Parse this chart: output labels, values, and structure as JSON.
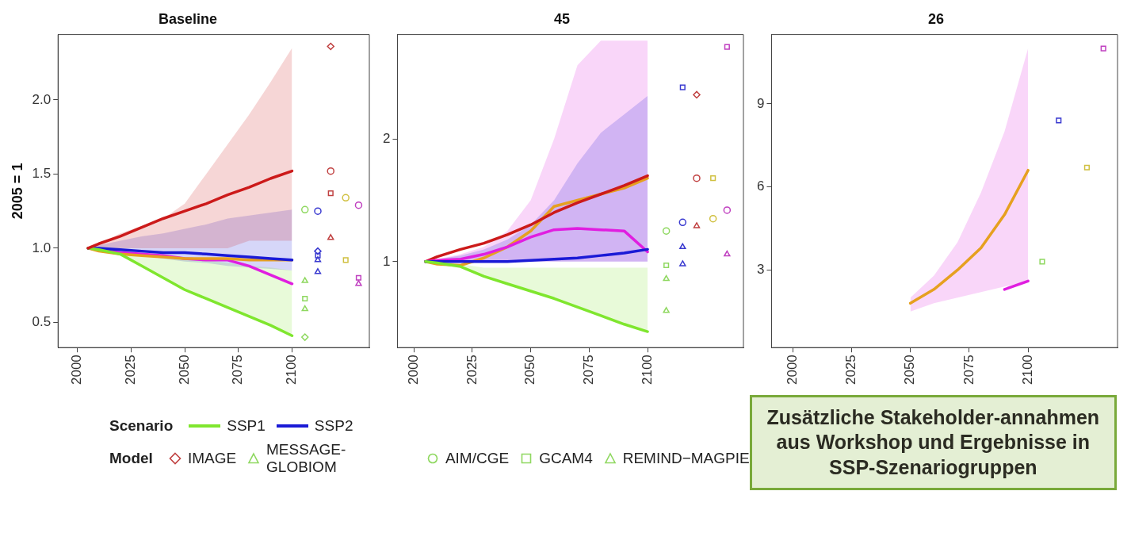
{
  "chart_data": [
    {
      "type": "line",
      "title": "Baseline",
      "ylabel": "2005 = 1",
      "legend": "bottom",
      "legend_title": "Scenario",
      "x": [
        2005,
        2010,
        2020,
        2030,
        2040,
        2050,
        2060,
        2070,
        2080,
        2090,
        2100
      ],
      "xlim": [
        1991,
        2136
      ],
      "xticks": [
        2000,
        2025,
        2050,
        2075,
        2100
      ],
      "ylim": [
        0.33,
        2.44
      ],
      "yticks": [
        0.5,
        {
          "value": 1,
          "label": "1.0"
        },
        1.5,
        {
          "value": 2,
          "label": "2.0"
        }
      ],
      "series": [
        {
          "type": "line",
          "color": "#cc1a1a",
          "values": [
            1,
            1.03,
            1.08,
            1.14,
            1.2,
            1.25,
            1.3,
            1.36,
            1.41,
            1.47,
            1.52
          ],
          "lower": [
            1,
            1,
            1,
            1,
            1,
            1,
            1,
            1,
            1.05,
            1.05,
            1.05
          ],
          "upper": [
            1,
            1.03,
            1.1,
            1.15,
            1.2,
            1.3,
            1.5,
            1.7,
            1.9,
            2.12,
            2.35
          ]
        },
        {
          "type": "line",
          "name": "SSP1",
          "color": "#7fe62e",
          "values": [
            1,
            0.99,
            0.96,
            0.88,
            0.8,
            0.72,
            0.66,
            0.6,
            0.54,
            0.48,
            0.41
          ],
          "lower": [
            1,
            0.99,
            0.96,
            0.88,
            0.8,
            0.72,
            0.66,
            0.6,
            0.54,
            0.48,
            0.41
          ],
          "upper": [
            1,
            1,
            0.98,
            0.96,
            0.95,
            0.93,
            0.92,
            0.9,
            0.88,
            0.87,
            0.85
          ]
        },
        {
          "type": "line",
          "name": "SSP2",
          "color": "#1a1ad6",
          "values": [
            1,
            1,
            0.99,
            0.98,
            0.97,
            0.97,
            0.96,
            0.95,
            0.94,
            0.93,
            0.92
          ],
          "lower": [
            1,
            0.99,
            0.97,
            0.95,
            0.93,
            0.91,
            0.9,
            0.88,
            0.87,
            0.86,
            0.85
          ],
          "upper": [
            1,
            1.02,
            1.05,
            1.08,
            1.1,
            1.13,
            1.16,
            1.2,
            1.22,
            1.24,
            1.26
          ]
        },
        {
          "type": "line",
          "color": "#e6a020",
          "values": [
            1,
            0.98,
            0.96,
            0.95,
            0.94,
            0.93,
            0.93,
            0.93,
            0.92,
            0.92,
            0.92
          ]
        },
        {
          "type": "line",
          "color": "#e01ee0",
          "values": [
            1,
            0.99,
            0.97,
            0.96,
            0.95,
            0.93,
            0.92,
            0.92,
            0.88,
            0.82,
            0.76
          ]
        },
        {
          "type": "scatter",
          "marker": "diamond",
          "x": [
            2106,
            2112,
            2118
          ],
          "values": [
            0.4,
            0.98,
            2.36
          ],
          "colors": [
            "#8fd860",
            "#3a3ad0",
            "#c04040"
          ]
        },
        {
          "type": "scatter",
          "marker": "triangle",
          "x": [
            2106,
            2112,
            2118
          ],
          "values": [
            0.78,
            0.92,
            1.07
          ],
          "colors": [
            "#8fd860",
            "#3a3ad0",
            "#c04040"
          ]
        },
        {
          "type": "scatter",
          "marker": "circle",
          "x": [
            2106,
            2112,
            2118,
            2125,
            2131
          ],
          "values": [
            1.26,
            1.25,
            1.52,
            1.34,
            1.29
          ],
          "colors": [
            "#8fd860",
            "#3a3ad0",
            "#c04040",
            "#d0c040",
            "#c040c0"
          ]
        },
        {
          "type": "scatter",
          "marker": "square",
          "x": [
            2106,
            2112,
            2118,
            2125,
            2131
          ],
          "values": [
            0.66,
            0.95,
            1.37,
            0.92,
            0.8
          ],
          "colors": [
            "#8fd860",
            "#3a3ad0",
            "#c04040",
            "#d0c040",
            "#c040c0"
          ]
        },
        {
          "type": "scatter",
          "marker": "triangle",
          "x": [
            2106,
            2112,
            2131
          ],
          "values": [
            0.59,
            0.84,
            0.76
          ],
          "colors": [
            "#8fd860",
            "#3a3ad0",
            "#c040c0"
          ]
        }
      ]
    },
    {
      "type": "line",
      "title": "45",
      "legend": "bottom",
      "legend_title": "Model",
      "x": [
        2005,
        2010,
        2020,
        2030,
        2040,
        2050,
        2060,
        2070,
        2080,
        2090,
        2100
      ],
      "xlim": [
        1993,
        2141
      ],
      "xticks": [
        2000,
        2025,
        2050,
        2075,
        2100
      ],
      "ylim": [
        0.3,
        2.85
      ],
      "yticks": [
        1,
        2
      ],
      "series": [
        {
          "type": "line",
          "color": "#7fe62e",
          "values": [
            1,
            0.99,
            0.96,
            0.88,
            0.82,
            0.76,
            0.7,
            0.63,
            0.56,
            0.49,
            0.43
          ],
          "lower": [
            1,
            0.99,
            0.96,
            0.88,
            0.82,
            0.76,
            0.7,
            0.63,
            0.56,
            0.49,
            0.43
          ],
          "upper": [
            1,
            1,
            0.98,
            0.95,
            0.95,
            0.95,
            0.95,
            0.95,
            0.95,
            0.95,
            0.95
          ]
        },
        {
          "type": "line",
          "color": "#1a1ad6",
          "values": [
            1,
            1,
            1,
            1,
            1,
            1.01,
            1.02,
            1.03,
            1.05,
            1.07,
            1.1
          ],
          "lower": [
            1,
            1,
            1,
            1,
            1,
            1,
            1,
            1,
            1,
            1,
            1
          ],
          "upper": [
            1,
            1.02,
            1.05,
            1.1,
            1.18,
            1.3,
            1.5,
            1.8,
            2.05,
            2.2,
            2.35
          ]
        },
        {
          "type": "line",
          "color": "#e01ee0",
          "values": [
            1,
            1.01,
            1.02,
            1.06,
            1.12,
            1.2,
            1.26,
            1.27,
            1.26,
            1.25,
            1.08
          ],
          "lower": [
            1,
            1,
            1,
            1,
            1,
            1,
            1,
            1,
            1,
            1,
            1
          ],
          "upper": [
            1,
            1.02,
            1.06,
            1.12,
            1.25,
            1.5,
            2,
            2.6,
            2.8,
            2.8,
            2.8
          ]
        },
        {
          "type": "line",
          "color": "#cc1a1a",
          "values": [
            1,
            1.04,
            1.1,
            1.15,
            1.22,
            1.3,
            1.4,
            1.48,
            1.55,
            1.62,
            1.7
          ]
        },
        {
          "type": "line",
          "color": "#e6a020",
          "values": [
            1,
            0.98,
            0.97,
            1.03,
            1.12,
            1.25,
            1.45,
            1.5,
            1.55,
            1.6,
            1.68
          ]
        },
        {
          "type": "scatter",
          "name": "IMAGE",
          "marker": "diamond",
          "x": [
            2121
          ],
          "values": [
            2.36
          ],
          "colors": [
            "#c04040"
          ]
        },
        {
          "type": "scatter",
          "name": "MESSAGE-GLOBIOM",
          "marker": "triangle",
          "x": [
            2108,
            2115,
            2121
          ],
          "values": [
            0.86,
            1.12,
            1.29
          ],
          "colors": [
            "#8fd860",
            "#3a3ad0",
            "#c04040"
          ]
        },
        {
          "type": "scatter",
          "name": "AIM/CGE",
          "marker": "circle",
          "x": [
            2108,
            2115,
            2121,
            2128,
            2134
          ],
          "values": [
            1.25,
            1.32,
            1.68,
            1.35,
            1.42
          ],
          "colors": [
            "#8fd860",
            "#3a3ad0",
            "#c04040",
            "#d0c040",
            "#c040c0"
          ]
        },
        {
          "type": "scatter",
          "name": "GCAM4",
          "marker": "square",
          "x": [
            2108,
            2115,
            2128,
            2134
          ],
          "values": [
            0.97,
            2.42,
            1.68,
            2.75
          ],
          "colors": [
            "#8fd860",
            "#3a3ad0",
            "#d0c040",
            "#c040c0"
          ]
        },
        {
          "type": "scatter",
          "name": "REMIND−MAGPIE",
          "marker": "triangle",
          "x": [
            2108,
            2115,
            2134
          ],
          "values": [
            0.6,
            0.98,
            1.06
          ],
          "colors": [
            "#8fd860",
            "#3a3ad0",
            "#c040c0"
          ]
        }
      ]
    },
    {
      "type": "line",
      "title": "26",
      "annotations": [
        "Zusätzliche Stakeholder-annahmen aus Workshop und Ergebnisse in SSP-Szenariogruppen"
      ],
      "x": [
        2050,
        2060,
        2070,
        2080,
        2090,
        2100
      ],
      "xlim": [
        1991,
        2138
      ],
      "xticks": [
        2000,
        2025,
        2050,
        2075,
        2100
      ],
      "ylim": [
        0.2,
        11.5
      ],
      "yticks": [
        3,
        6,
        9
      ],
      "series": [
        {
          "type": "line",
          "color": "#e01ee0",
          "values": [
            null,
            null,
            null,
            null,
            2.3,
            2.6
          ],
          "lower": [
            1.5,
            1.8,
            2,
            2.2,
            2.4,
            2.6
          ],
          "upper": [
            2,
            2.8,
            4,
            5.8,
            8,
            11
          ]
        },
        {
          "type": "line",
          "color": "#e6a020",
          "values": [
            1.8,
            2.3,
            3,
            3.8,
            5,
            6.6
          ]
        },
        {
          "type": "scatter",
          "marker": "square",
          "x": [
            2106,
            2113,
            2125,
            2132
          ],
          "values": [
            3.3,
            8.4,
            6.7,
            11
          ],
          "colors": [
            "#8fd860",
            "#3a3ad0",
            "#d0c040",
            "#c040c0"
          ]
        }
      ]
    }
  ]
}
